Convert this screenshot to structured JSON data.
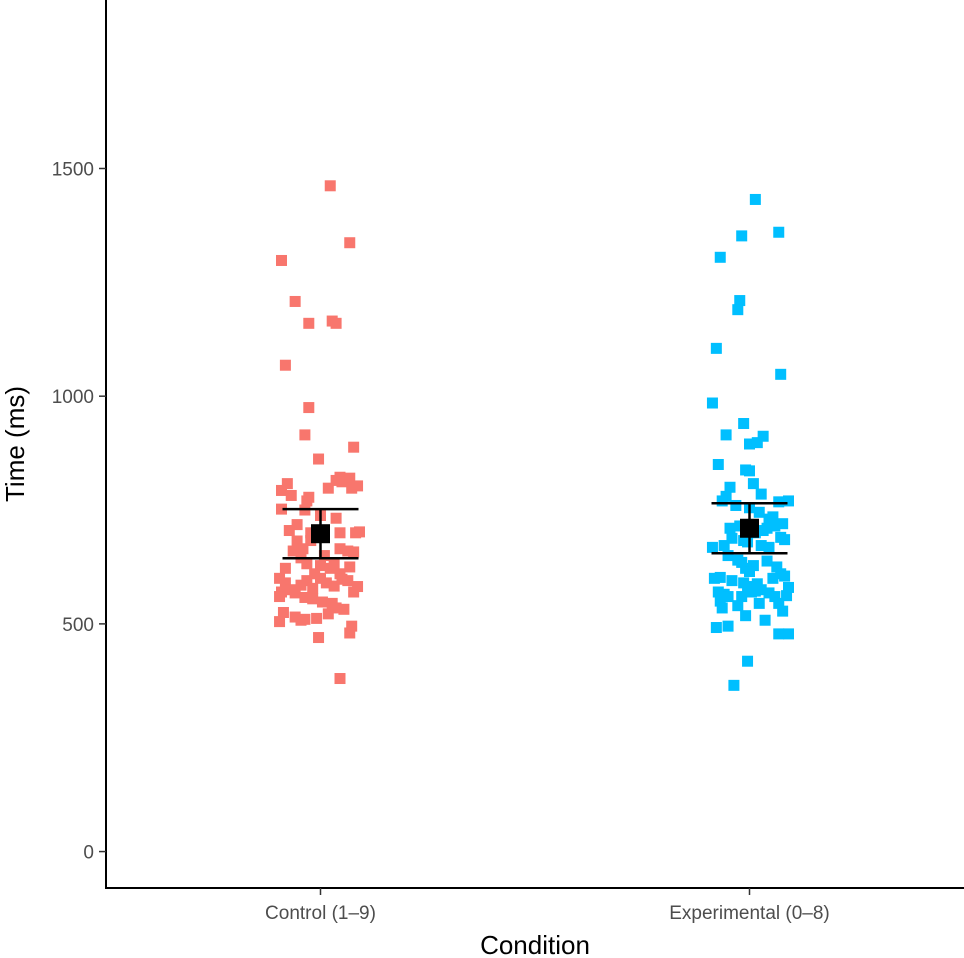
{
  "chart_data": {
    "type": "scatter",
    "title": "",
    "xlabel": "Condition",
    "ylabel": "Time (ms)",
    "categories": [
      "Control (1–9)",
      "Experimental (0–8)"
    ],
    "ylim": [
      -80,
      1870
    ],
    "yticks": [
      0,
      500,
      1000,
      1500
    ],
    "grid": false,
    "legend": "none",
    "series": [
      {
        "category": "Control (1–9)",
        "color": "#F8766D",
        "marker": "square",
        "points": [
          [
            -0.2,
            1298
          ],
          [
            -0.13,
            1208
          ],
          [
            -0.06,
            1160
          ],
          [
            0.05,
            1462
          ],
          [
            0.06,
            1165
          ],
          [
            0.08,
            1160
          ],
          [
            0.15,
            1337
          ],
          [
            -0.18,
            1068
          ],
          [
            -0.06,
            975
          ],
          [
            -0.08,
            915
          ],
          [
            0.17,
            888
          ],
          [
            -0.01,
            862
          ],
          [
            -0.2,
            793
          ],
          [
            -0.17,
            808
          ],
          [
            -0.15,
            782
          ],
          [
            -0.06,
            778
          ],
          [
            -0.07,
            770
          ],
          [
            0.04,
            798
          ],
          [
            0.08,
            815
          ],
          [
            0.1,
            822
          ],
          [
            0.11,
            812
          ],
          [
            0.15,
            820
          ],
          [
            0.16,
            798
          ],
          [
            0.19,
            803
          ],
          [
            -0.2,
            752
          ],
          [
            -0.08,
            750
          ],
          [
            0.0,
            738
          ],
          [
            0.08,
            732
          ],
          [
            -0.12,
            718
          ],
          [
            -0.16,
            705
          ],
          [
            -0.05,
            700
          ],
          [
            -0.02,
            695
          ],
          [
            0.1,
            700
          ],
          [
            0.18,
            700
          ],
          [
            0.2,
            702
          ],
          [
            -0.12,
            682
          ],
          [
            -0.09,
            665
          ],
          [
            -0.05,
            683
          ],
          [
            0.02,
            650
          ],
          [
            0.1,
            665
          ],
          [
            0.14,
            660
          ],
          [
            0.17,
            658
          ],
          [
            -0.14,
            660
          ],
          [
            -0.1,
            645
          ],
          [
            -0.07,
            632
          ],
          [
            0.0,
            628
          ],
          [
            0.05,
            622
          ],
          [
            0.07,
            632
          ],
          [
            0.15,
            625
          ],
          [
            -0.18,
            622
          ],
          [
            -0.21,
            600
          ],
          [
            -0.18,
            590
          ],
          [
            -0.15,
            575
          ],
          [
            -0.1,
            585
          ],
          [
            -0.07,
            595
          ],
          [
            -0.03,
            610
          ],
          [
            -0.04,
            578
          ],
          [
            0.0,
            600
          ],
          [
            0.03,
            590
          ],
          [
            0.07,
            583
          ],
          [
            0.1,
            610
          ],
          [
            0.11,
            598
          ],
          [
            0.14,
            595
          ],
          [
            0.17,
            570
          ],
          [
            0.19,
            582
          ],
          [
            -0.2,
            570
          ],
          [
            -0.21,
            560
          ],
          [
            -0.13,
            568
          ],
          [
            -0.08,
            558
          ],
          [
            -0.04,
            555
          ],
          [
            0.01,
            548
          ],
          [
            0.06,
            545
          ],
          [
            0.08,
            535
          ],
          [
            0.12,
            532
          ],
          [
            -0.19,
            525
          ],
          [
            -0.13,
            515
          ],
          [
            -0.1,
            508
          ],
          [
            -0.08,
            510
          ],
          [
            -0.02,
            512
          ],
          [
            0.04,
            522
          ],
          [
            -0.21,
            505
          ],
          [
            0.16,
            495
          ],
          [
            0.15,
            480
          ],
          [
            -0.01,
            470
          ],
          [
            0.1,
            380
          ]
        ]
      },
      {
        "category": "Experimental (0–8)",
        "color": "#00BFFF",
        "marker": "square",
        "points": [
          [
            0.03,
            1432
          ],
          [
            0.15,
            1360
          ],
          [
            -0.15,
            1305
          ],
          [
            -0.04,
            1352
          ],
          [
            -0.05,
            1210
          ],
          [
            -0.06,
            1190
          ],
          [
            -0.17,
            1105
          ],
          [
            0.16,
            1048
          ],
          [
            -0.19,
            985
          ],
          [
            -0.12,
            915
          ],
          [
            -0.03,
            940
          ],
          [
            0.0,
            895
          ],
          [
            0.04,
            898
          ],
          [
            0.07,
            912
          ],
          [
            -0.16,
            850
          ],
          [
            -0.02,
            838
          ],
          [
            0.0,
            836
          ],
          [
            -0.1,
            800
          ],
          [
            0.02,
            808
          ],
          [
            0.06,
            785
          ],
          [
            -0.12,
            780
          ],
          [
            -0.14,
            770
          ],
          [
            0.15,
            768
          ],
          [
            0.2,
            770
          ],
          [
            -0.07,
            760
          ],
          [
            0.0,
            755
          ],
          [
            0.05,
            745
          ],
          [
            0.1,
            730
          ],
          [
            0.12,
            735
          ],
          [
            0.17,
            720
          ],
          [
            -0.1,
            710
          ],
          [
            -0.05,
            715
          ],
          [
            0.03,
            700
          ],
          [
            0.07,
            705
          ],
          [
            0.09,
            710
          ],
          [
            0.13,
            715
          ],
          [
            0.16,
            690
          ],
          [
            0.18,
            685
          ],
          [
            -0.19,
            668
          ],
          [
            -0.13,
            672
          ],
          [
            -0.09,
            688
          ],
          [
            -0.03,
            683
          ],
          [
            -0.01,
            680
          ],
          [
            0.06,
            672
          ],
          [
            0.1,
            668
          ],
          [
            -0.11,
            650
          ],
          [
            -0.06,
            640
          ],
          [
            -0.04,
            635
          ],
          [
            0.02,
            628
          ],
          [
            0.09,
            638
          ],
          [
            0.14,
            625
          ],
          [
            -0.02,
            622
          ],
          [
            0.0,
            615
          ],
          [
            0.16,
            610
          ],
          [
            0.18,
            605
          ],
          [
            -0.18,
            600
          ],
          [
            -0.15,
            602
          ],
          [
            -0.09,
            595
          ],
          [
            -0.03,
            590
          ],
          [
            -0.01,
            582
          ],
          [
            0.04,
            588
          ],
          [
            0.06,
            575
          ],
          [
            0.12,
            600
          ],
          [
            0.2,
            580
          ],
          [
            -0.16,
            570
          ],
          [
            -0.13,
            565
          ],
          [
            -0.11,
            560
          ],
          [
            -0.04,
            560
          ],
          [
            0.01,
            570
          ],
          [
            0.03,
            572
          ],
          [
            0.1,
            568
          ],
          [
            0.13,
            560
          ],
          [
            0.15,
            545
          ],
          [
            0.19,
            562
          ],
          [
            -0.15,
            550
          ],
          [
            -0.14,
            535
          ],
          [
            -0.06,
            540
          ],
          [
            0.05,
            545
          ],
          [
            0.17,
            528
          ],
          [
            -0.02,
            518
          ],
          [
            0.08,
            508
          ],
          [
            -0.17,
            492
          ],
          [
            -0.11,
            495
          ],
          [
            0.15,
            478
          ],
          [
            0.2,
            478
          ],
          [
            -0.01,
            418
          ],
          [
            -0.08,
            365
          ]
        ]
      }
    ],
    "summary": [
      {
        "category": "Control (1–9)",
        "mean": 698,
        "ci_low": 644,
        "ci_high": 752,
        "color": "#000000"
      },
      {
        "category": "Experimental (0–8)",
        "mean": 710,
        "ci_low": 655,
        "ci_high": 765,
        "color": "#000000"
      }
    ]
  }
}
